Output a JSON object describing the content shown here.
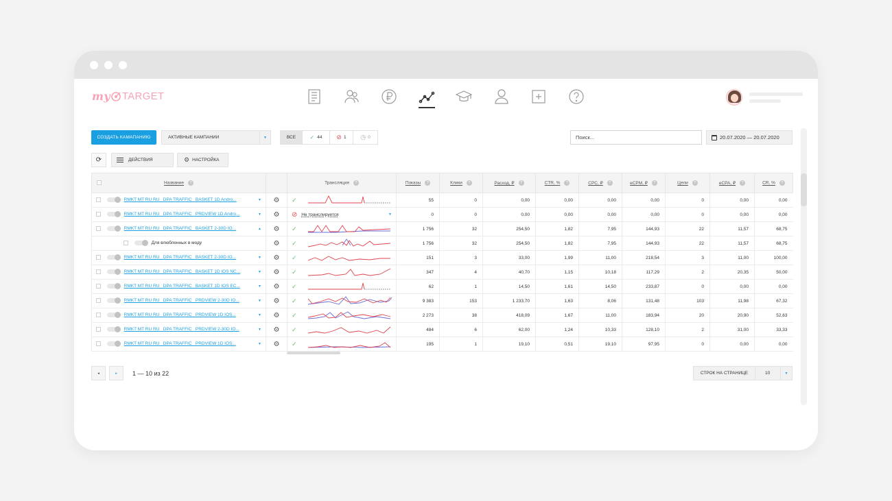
{
  "brand": {
    "my": "my",
    "target": "TARGET"
  },
  "nav": [
    "documents-icon",
    "audiences-icon",
    "billing-icon",
    "statistics-icon",
    "education-icon",
    "profile-icon",
    "add-panel-icon",
    "help-icon"
  ],
  "toolbar": {
    "create_label": "СОЗДАТЬ КАМАПАНИЮ",
    "campaign_filter": "АКТИВНЫЕ КАМПАНИИ",
    "filter_all": "ВСЕ",
    "filter_active": "44",
    "filter_stopped": "1",
    "filter_pending": "0",
    "search_value": "Поиск...",
    "date_range": "20.07.2020 — 20.07.2020",
    "actions_label": "ДЕЙСТВИЯ",
    "settings_label": "НАСТРОЙКА"
  },
  "table": {
    "headers": {
      "name": "Название",
      "translation": "Трансляция",
      "shows": "Показы",
      "clicks": "Клики",
      "spend": "Расход, ₽",
      "ctr": "CTR, %",
      "cpc": "CPC, ₽",
      "ecpm": "eCPM, ₽",
      "goals": "Цели",
      "ecpa": "eCPA, ₽",
      "cr": "CR, %"
    },
    "rows": [
      {
        "name": "RMKT MT RU RU _DPA TRAFFIC _BASKET 1D Andro...",
        "status": "ok",
        "shows": "55",
        "clicks": "0",
        "spend": "0,00",
        "ctr": "0,00",
        "cpc": "0,00",
        "ecpm": "0,00",
        "goals": "0",
        "ecpa": "0,00",
        "cr": "0,00"
      },
      {
        "name": "RMKT MT RU RU _DPA TRAFFIC _PRDVIEW 1D Andro...",
        "status": "stop",
        "status_text": "Не транслируется",
        "shows": "0",
        "clicks": "0",
        "spend": "0,00",
        "ctr": "0,00",
        "cpc": "0,00",
        "ecpm": "0,00",
        "goals": "0",
        "ecpa": "0,00",
        "cr": "0,00"
      },
      {
        "name": "RMKT MT RU RU _DPA TRAFFIC _BASKET 2-30D IO...",
        "status": "ok",
        "shows": "1 756",
        "clicks": "32",
        "spend": "254,50",
        "ctr": "1,82",
        "cpc": "7,95",
        "ecpm": "144,93",
        "goals": "22",
        "ecpa": "11,57",
        "cr": "68,75"
      },
      {
        "name": "Для влюбленных в моду",
        "sub": true,
        "status": "ok",
        "shows": "1 756",
        "clicks": "32",
        "spend": "254,50",
        "ctr": "1,82",
        "cpc": "7,95",
        "ecpm": "144,93",
        "goals": "22",
        "ecpa": "11,57",
        "cr": "68,75"
      },
      {
        "name": "RMKT MT RU RU _DPA TRAFFIC _BASKET 2-30D IO...",
        "status": "ok",
        "shows": "151",
        "clicks": "3",
        "spend": "33,00",
        "ctr": "1,99",
        "cpc": "11,00",
        "ecpm": "218,54",
        "goals": "3",
        "ecpa": "11,00",
        "cr": "100,00"
      },
      {
        "name": "RMKT MT RU RU _DPA TRAFFIC _BASKET 1D IOS NC...",
        "status": "ok",
        "shows": "347",
        "clicks": "4",
        "spend": "40,70",
        "ctr": "1,15",
        "cpc": "10,18",
        "ecpm": "117,29",
        "goals": "2",
        "ecpa": "20,35",
        "cr": "50,00"
      },
      {
        "name": "RMKT MT RU RU _DPA TRAFFIC _BASKET 1D IOS EC...",
        "status": "ok",
        "shows": "62",
        "clicks": "1",
        "spend": "14,50",
        "ctr": "1,61",
        "cpc": "14,50",
        "ecpm": "233,87",
        "goals": "0",
        "ecpa": "0,00",
        "cr": "0,00"
      },
      {
        "name": "RMKT MT RU RU _DPA TRAFFIC _PRDVIEW 2-30D IO...",
        "status": "ok",
        "shows": "9 383",
        "clicks": "153",
        "spend": "1 233,70",
        "ctr": "1,63",
        "cpc": "8,06",
        "ecpm": "131,48",
        "goals": "103",
        "ecpa": "11,98",
        "cr": "67,32"
      },
      {
        "name": "RMKT MT RU RU _DPA TRAFFIC _PRDVIEW 1D IOS...",
        "status": "ok",
        "shows": "2 273",
        "clicks": "38",
        "spend": "418,09",
        "ctr": "1,67",
        "cpc": "11,00",
        "ecpm": "183,94",
        "goals": "20",
        "ecpa": "20,90",
        "cr": "52,63"
      },
      {
        "name": "RMKT MT RU RU _DPA TRAFFIC _PRDVIEW 2-30D IO...",
        "status": "ok",
        "shows": "484",
        "clicks": "6",
        "spend": "62,00",
        "ctr": "1,24",
        "cpc": "10,33",
        "ecpm": "128,10",
        "goals": "2",
        "ecpa": "31,00",
        "cr": "33,33"
      },
      {
        "name": "RMKT MT RU RU _DPA TRAFFIC _PRDVIEW 1D IOS...",
        "status": "ok",
        "shows": "195",
        "clicks": "1",
        "spend": "19,10",
        "ctr": "0,51",
        "cpc": "19,10",
        "ecpm": "97,95",
        "goals": "0",
        "ecpa": "0,00",
        "cr": "0,00"
      }
    ]
  },
  "pagination": {
    "info": "1 — 10 из 22",
    "per_page_label": "СТРОК НА СТРАНИЦЕ",
    "per_page": "10"
  },
  "colors": {
    "accent": "#1a9fe0",
    "spark_red": "#e0434d",
    "spark_blue": "#6a6ad8",
    "ok": "#5bbf6b",
    "stop": "#e74c4c",
    "brand_pink": "#f7a5b6"
  }
}
